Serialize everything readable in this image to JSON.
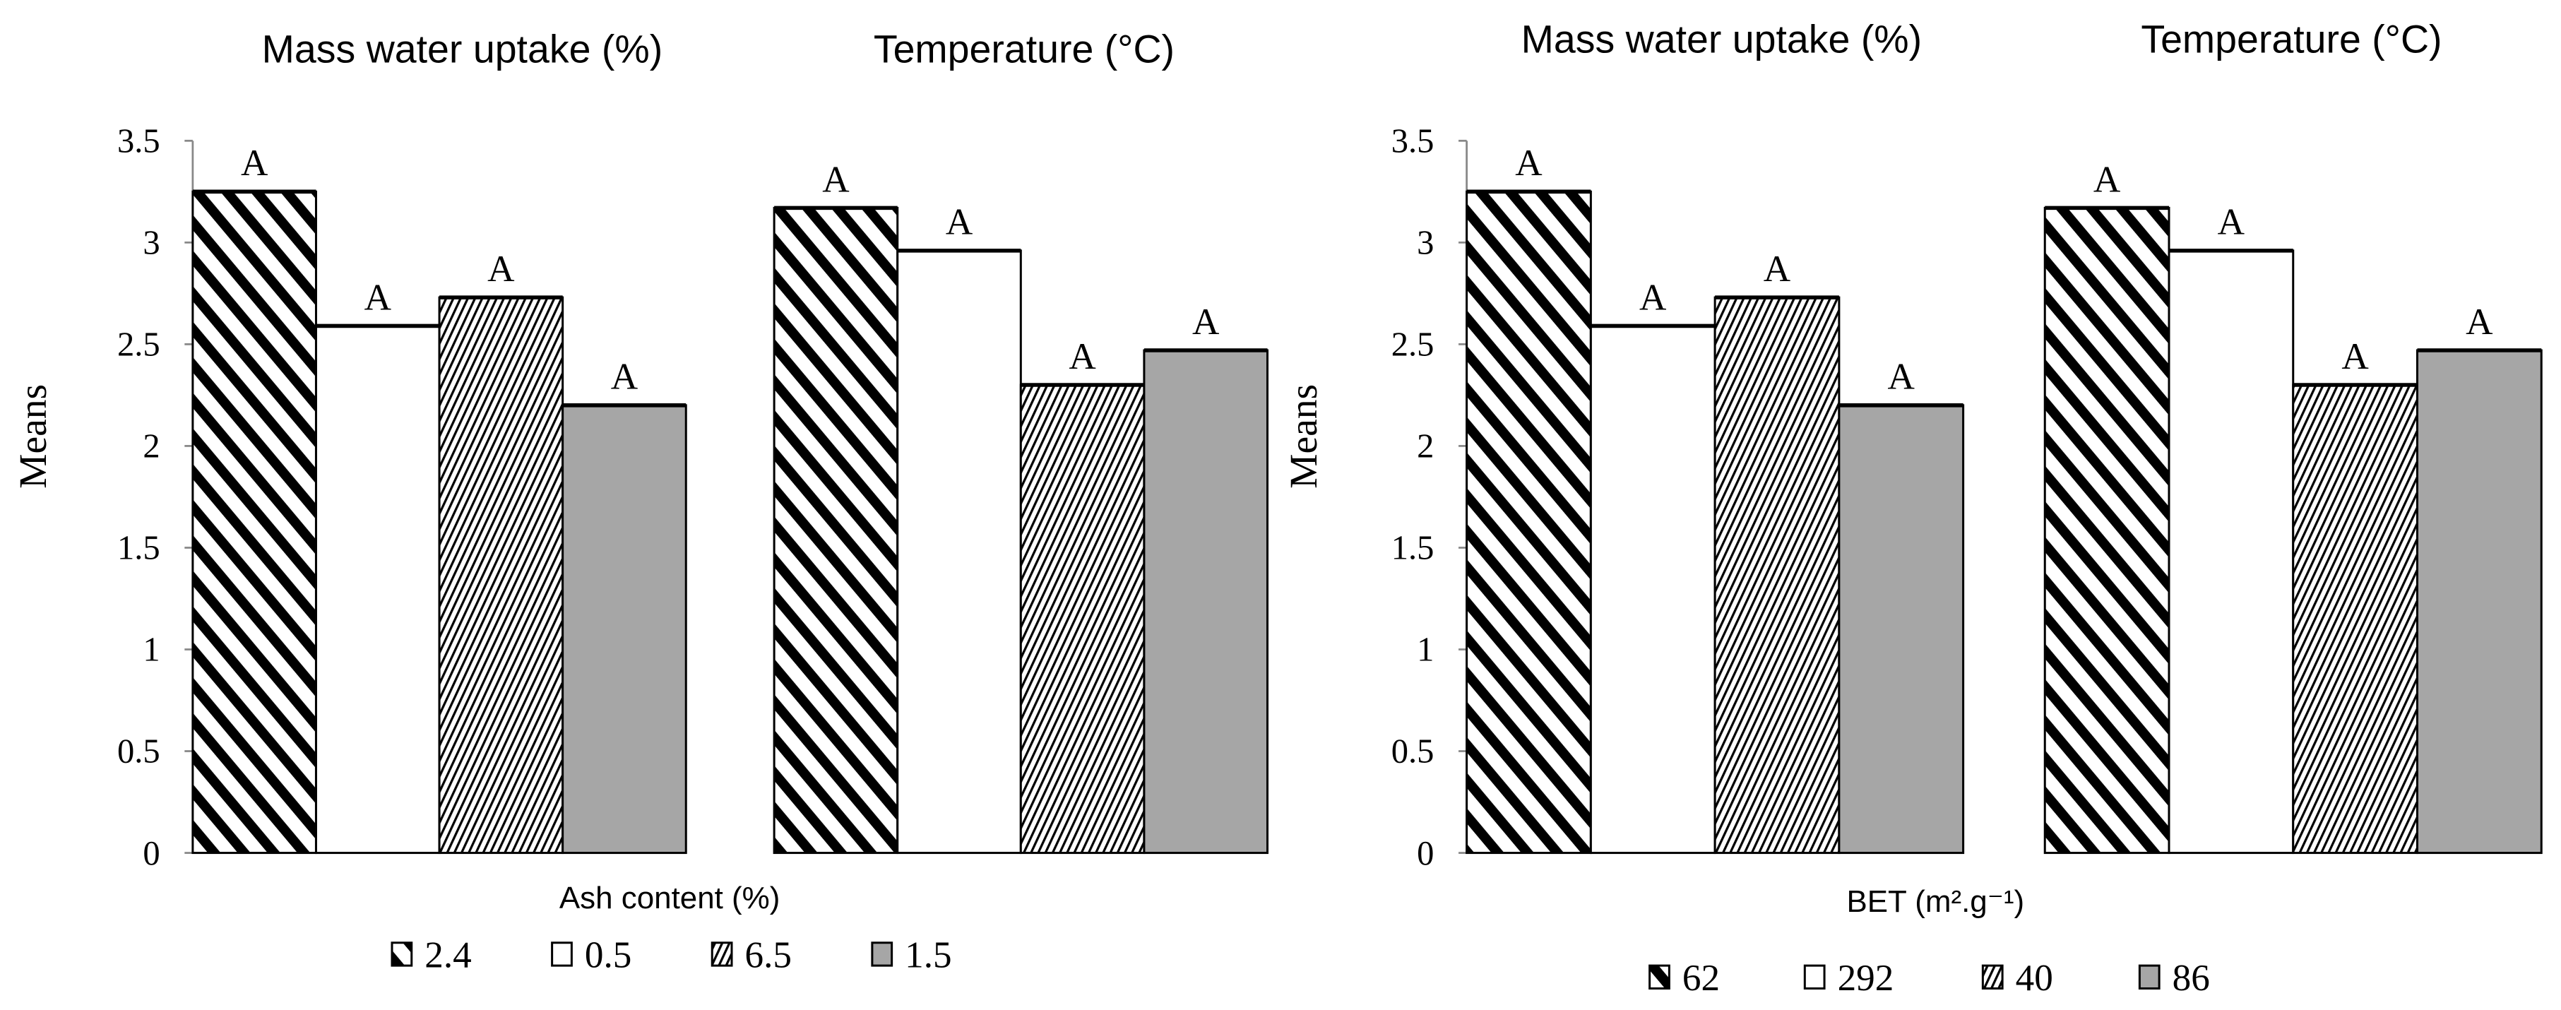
{
  "chart_data": [
    {
      "type": "bar",
      "ylabel": "Means",
      "xlabel": "Ash content (%)",
      "ylim": [
        0,
        3.5
      ],
      "yticks": [
        "0",
        "0.5",
        "1",
        "1.5",
        "2",
        "2.5",
        "3",
        "3.5"
      ],
      "grid": false,
      "legend_placement": "bottom",
      "categories": [
        "Mass water uptake (%)",
        "Temperature (°C)"
      ],
      "series": [
        {
          "name": "2.4",
          "pattern": "wide-diagonal",
          "values": [
            3.25,
            3.17
          ],
          "labels": [
            "A",
            "A"
          ]
        },
        {
          "name": "0.5",
          "pattern": "white",
          "values": [
            2.59,
            2.96
          ],
          "labels": [
            "A",
            "A"
          ]
        },
        {
          "name": "6.5",
          "pattern": "fine-diagonal",
          "values": [
            2.73,
            2.3
          ],
          "labels": [
            "A",
            "A"
          ]
        },
        {
          "name": "1.5",
          "pattern": "gray",
          "values": [
            2.2,
            2.47
          ],
          "labels": [
            "A",
            "A"
          ]
        }
      ]
    },
    {
      "type": "bar",
      "ylabel": "Means",
      "xlabel": "BET (m².g⁻¹)",
      "ylim": [
        0,
        3.5
      ],
      "yticks": [
        "0",
        "0.5",
        "1",
        "1.5",
        "2",
        "2.5",
        "3",
        "3.5"
      ],
      "grid": false,
      "legend_placement": "bottom",
      "categories": [
        "Mass water uptake (%)",
        "Temperature (°C)"
      ],
      "series": [
        {
          "name": "62",
          "pattern": "wide-diagonal",
          "values": [
            3.25,
            3.17
          ],
          "labels": [
            "A",
            "A"
          ]
        },
        {
          "name": "292",
          "pattern": "white",
          "values": [
            2.59,
            2.96
          ],
          "labels": [
            "A",
            "A"
          ]
        },
        {
          "name": "40",
          "pattern": "fine-diagonal",
          "values": [
            2.73,
            2.3
          ],
          "labels": [
            "A",
            "A"
          ]
        },
        {
          "name": "86",
          "pattern": "gray",
          "values": [
            2.2,
            2.47
          ],
          "labels": [
            "A",
            "A"
          ]
        }
      ]
    }
  ],
  "colors": {
    "gray_fill": "#a6a6a6",
    "stroke": "#000000",
    "axis": "#888888"
  }
}
